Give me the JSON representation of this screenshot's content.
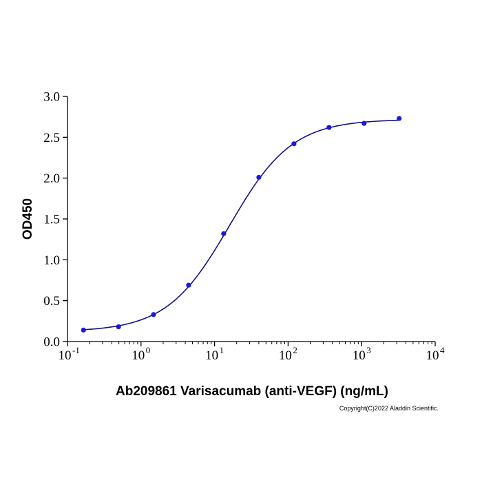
{
  "chart_data": {
    "type": "scatter",
    "x_scale": "log",
    "xlabel": "Ab209861 Varisacumab (anti-VEGF) (ng/mL)",
    "ylabel": "OD450",
    "xlim": [
      0.1,
      10000
    ],
    "ylim": [
      0,
      3.0
    ],
    "x_ticks": [
      {
        "base": "10",
        "exp": "-1"
      },
      {
        "base": "10",
        "exp": "0"
      },
      {
        "base": "10",
        "exp": "1"
      },
      {
        "base": "10",
        "exp": "2"
      },
      {
        "base": "10",
        "exp": "3"
      },
      {
        "base": "10",
        "exp": "4"
      }
    ],
    "y_ticks": [
      "0.0",
      "0.5",
      "1.0",
      "1.5",
      "2.0",
      "2.5",
      "3.0"
    ],
    "series": [
      {
        "color": "#1a1ad6",
        "line_color": "#12128a",
        "points": [
          {
            "x": 0.165,
            "y": 0.14
          },
          {
            "x": 0.494,
            "y": 0.18
          },
          {
            "x": 1.48,
            "y": 0.33
          },
          {
            "x": 4.44,
            "y": 0.69
          },
          {
            "x": 13.3,
            "y": 1.32
          },
          {
            "x": 40.0,
            "y": 2.01
          },
          {
            "x": 120,
            "y": 2.42
          },
          {
            "x": 360,
            "y": 2.62
          },
          {
            "x": 1080,
            "y": 2.67
          },
          {
            "x": 3240,
            "y": 2.73
          }
        ]
      }
    ],
    "grid": false,
    "legend": "none"
  },
  "footer": {
    "copyright": "Copyright(C)2022 Aladdin Scientific."
  }
}
